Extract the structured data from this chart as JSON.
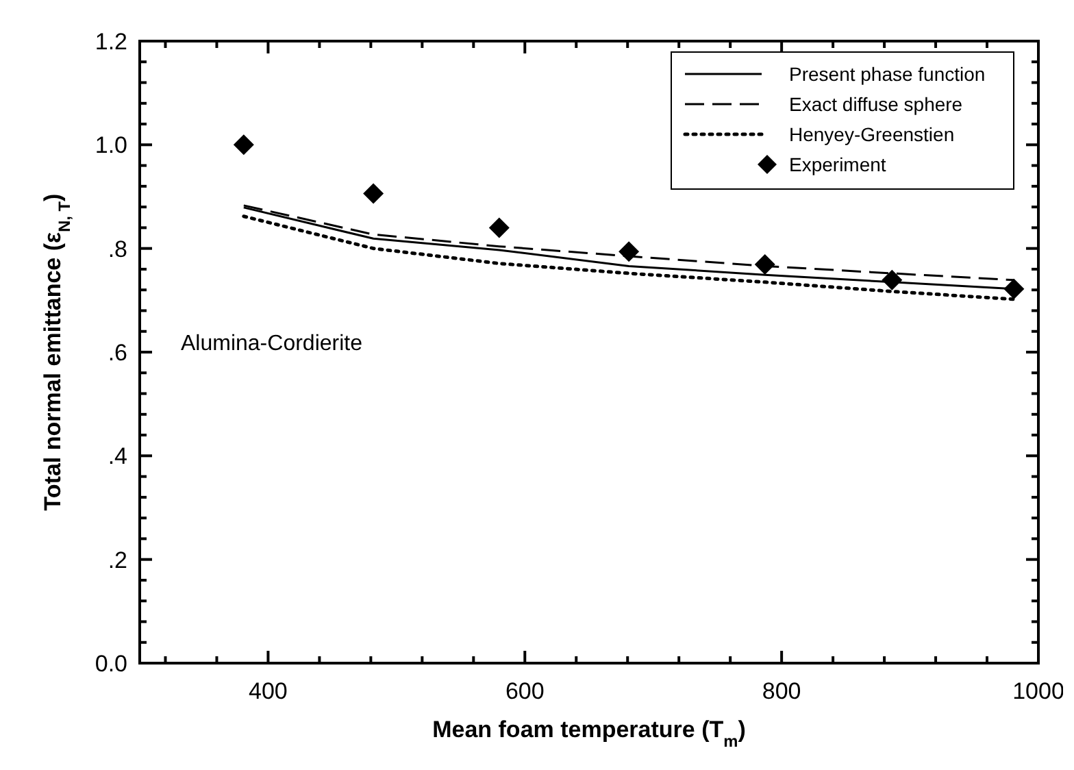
{
  "chart_data": {
    "type": "line",
    "xlabel": "Mean foam temperature (T$_{m}$)",
    "ylabel": "Total normal emittance (ε$_{N, T}$)",
    "annotations": [
      "Alumina-Cordierite"
    ],
    "xlim": [
      300,
      1000
    ],
    "xticks": [
      {
        "value": 320,
        "label": null
      },
      {
        "value": 360,
        "label": null
      },
      400,
      {
        "value": 440,
        "label": null
      },
      {
        "value": 480,
        "label": null
      },
      {
        "value": 520,
        "label": null
      },
      {
        "value": 560,
        "label": null
      },
      600,
      {
        "value": 640,
        "label": null
      },
      {
        "value": 680,
        "label": null
      },
      {
        "value": 720,
        "label": null
      },
      {
        "value": 760,
        "label": null
      },
      800,
      {
        "value": 840,
        "label": null
      },
      {
        "value": 880,
        "label": null
      },
      {
        "value": 920,
        "label": null
      },
      {
        "value": 960,
        "label": null
      },
      1000
    ],
    "ylim": [
      0,
      1.2
    ],
    "yticks": [
      {
        "value": 0,
        "label": "0.0"
      },
      {
        "value": 0.04,
        "label": null
      },
      {
        "value": 0.08,
        "label": null
      },
      {
        "value": 0.12,
        "label": null
      },
      {
        "value": 0.16,
        "label": null
      },
      {
        "value": 0.2,
        "label": ".2"
      },
      {
        "value": 0.24,
        "label": null
      },
      {
        "value": 0.28,
        "label": null
      },
      {
        "value": 0.32,
        "label": null
      },
      {
        "value": 0.36,
        "label": null
      },
      {
        "value": 0.4,
        "label": ".4"
      },
      {
        "value": 0.44,
        "label": null
      },
      {
        "value": 0.48,
        "label": null
      },
      {
        "value": 0.52,
        "label": null
      },
      {
        "value": 0.56,
        "label": null
      },
      {
        "value": 0.6,
        "label": ".6"
      },
      {
        "value": 0.64,
        "label": null
      },
      {
        "value": 0.68,
        "label": null
      },
      {
        "value": 0.72,
        "label": null
      },
      {
        "value": 0.76,
        "label": null
      },
      {
        "value": 0.8,
        "label": ".8"
      },
      {
        "value": 0.84,
        "label": null
      },
      {
        "value": 0.88,
        "label": null
      },
      {
        "value": 0.92,
        "label": null
      },
      {
        "value": 0.96,
        "label": null
      },
      {
        "value": 1.0,
        "label": "1.0"
      },
      {
        "value": 1.04,
        "label": null
      },
      {
        "value": 1.08,
        "label": null
      },
      {
        "value": 1.12,
        "label": null
      },
      {
        "value": 1.16,
        "label": null
      },
      {
        "value": 1.2,
        "label": "1.2"
      }
    ],
    "x": [
      381,
      482,
      580,
      681,
      787,
      886,
      981
    ],
    "grid": false,
    "legend": "top right",
    "marker": "none",
    "series": [
      {
        "name": "Present phase function",
        "color": "#000000",
        "line_style": "solid",
        "values": [
          0.879,
          0.819,
          0.797,
          0.766,
          0.749,
          0.735,
          0.722
        ]
      },
      {
        "name": "Exact diffuse sphere",
        "color": "#000000",
        "line_style": "dashed",
        "values": [
          0.883,
          0.827,
          0.804,
          0.785,
          0.766,
          0.752,
          0.739
        ]
      },
      {
        "name": "Henyey-Greenstien",
        "color": "#000000",
        "line_style": "dotted",
        "values": [
          0.862,
          0.8,
          0.771,
          0.752,
          0.735,
          0.717,
          0.702
        ]
      },
      {
        "name": "Experiment",
        "type": "scatter",
        "marker": "diamond",
        "color": "#000000",
        "values": [
          1.0,
          0.906,
          0.84,
          0.794,
          0.769,
          0.739,
          0.722
        ]
      }
    ]
  }
}
